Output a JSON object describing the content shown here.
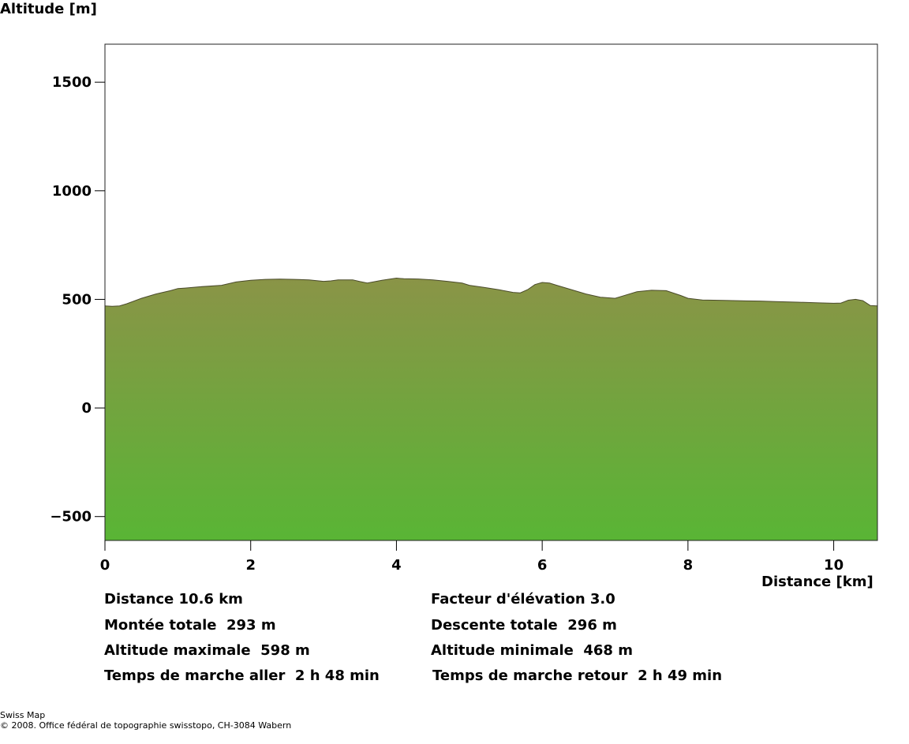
{
  "chart_data": {
    "type": "area",
    "ylabel": "Altitude [m]",
    "xlabel": "Distance [km]",
    "xlim": [
      0,
      10.6
    ],
    "ylim": [
      -610,
      1675
    ],
    "x_ticks": [
      0,
      2,
      4,
      6,
      8,
      10
    ],
    "y_ticks": [
      -500,
      0,
      500,
      1000,
      1500
    ],
    "y_tick_labels": [
      "−500",
      "0",
      "500",
      "1000",
      "1500"
    ],
    "grid": false,
    "fill_top_color": "#8a9447",
    "fill_bottom_color": "#59b535",
    "series": [
      {
        "x": [
          0,
          0.1,
          0.2,
          0.3,
          0.5,
          0.7,
          0.9,
          1.0,
          1.1,
          1.3,
          1.6,
          1.8,
          2.0,
          2.2,
          2.4,
          2.6,
          2.8,
          3.0,
          3.1,
          3.2,
          3.4,
          3.5,
          3.6,
          3.8,
          4.0,
          4.1,
          4.3,
          4.5,
          4.7,
          4.9,
          5.0,
          5.2,
          5.4,
          5.6,
          5.7,
          5.8,
          5.9,
          6.0,
          6.1,
          6.2,
          6.4,
          6.6,
          6.8,
          7.0,
          7.1,
          7.3,
          7.5,
          7.7,
          7.9,
          8.0,
          8.2,
          8.5,
          8.8,
          9.0,
          9.2,
          9.5,
          9.8,
          10.0,
          10.1,
          10.2,
          10.3,
          10.4,
          10.5,
          10.6
        ],
        "y": [
          470,
          468,
          470,
          480,
          505,
          525,
          540,
          550,
          552,
          558,
          565,
          580,
          588,
          592,
          593,
          592,
          590,
          583,
          585,
          590,
          590,
          582,
          575,
          588,
          598,
          595,
          594,
          590,
          583,
          575,
          565,
          555,
          545,
          532,
          530,
          545,
          568,
          578,
          575,
          565,
          545,
          525,
          510,
          505,
          515,
          535,
          542,
          540,
          518,
          505,
          497,
          495,
          493,
          492,
          490,
          487,
          484,
          482,
          483,
          496,
          500,
          494,
          472,
          470
        ]
      }
    ]
  },
  "stats": {
    "distance": "Distance 10.6 km",
    "factor": "Facteur d'élévation 3.0",
    "ascent": "Montée totale  293 m",
    "descent": "Descente totale  296 m",
    "alt_max": "Altitude maximale  598 m",
    "alt_min": "Altitude minimale  468 m",
    "time_out": "Temps de marche aller  2 h 48 min",
    "time_back": "Temps de marche retour  2 h 49 min"
  },
  "footer": {
    "line1": "Swiss Map",
    "line2": "© 2008. Office fédéral de topographie swisstopo, CH-3084 Wabern"
  }
}
